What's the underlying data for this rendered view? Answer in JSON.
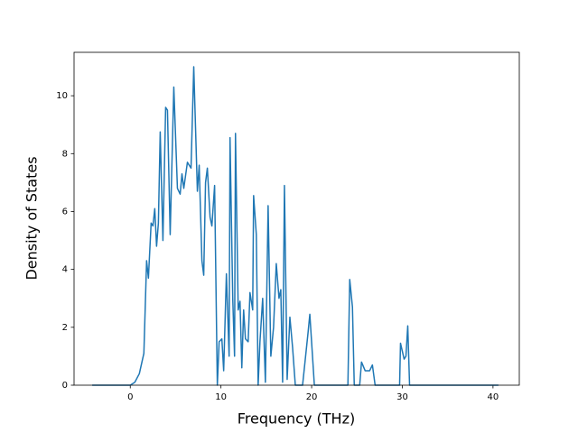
{
  "chart_data": {
    "type": "line",
    "x_label": "Frequency (THz)",
    "y_label": "Density of States",
    "xlim": [
      -6.2,
      42.9
    ],
    "ylim": [
      0,
      11.5
    ],
    "xticks": [
      0,
      10,
      20,
      30,
      40
    ],
    "yticks": [
      0,
      2,
      4,
      6,
      8,
      10
    ],
    "grid": false,
    "series": [
      {
        "color": "#1f77b4",
        "x": [
          -4.2,
          0,
          0.5,
          1,
          1.5,
          1.8,
          2,
          2.3,
          2.5,
          2.7,
          2.9,
          3.1,
          3.3,
          3.6,
          3.9,
          4.1,
          4.4,
          4.8,
          5.2,
          5.5,
          5.7,
          5.9,
          6.3,
          6.7,
          7.0,
          7.4,
          7.6,
          7.9,
          8.1,
          8.3,
          8.5,
          8.8,
          9.0,
          9.3,
          9.6,
          9.8,
          10.1,
          10.3,
          10.6,
          10.9,
          11.0,
          11.3,
          11.5,
          11.6,
          11.9,
          12.1,
          12.3,
          12.5,
          12.7,
          13.0,
          13.2,
          13.5,
          13.6,
          13.9,
          14.1,
          14.3,
          14.6,
          14.9,
          15.2,
          15.5,
          15.8,
          16.1,
          16.4,
          16.6,
          16.8,
          17.0,
          17.3,
          17.6,
          17.9,
          18.2,
          19.0,
          19.6,
          19.8,
          20.3,
          24.0,
          24.2,
          24.5,
          24.7,
          25.3,
          25.5,
          25.9,
          26.4,
          26.7,
          27.0,
          29.7,
          29.8,
          30.2,
          30.4,
          30.6,
          30.8,
          40.6
        ],
        "values": [
          0,
          0,
          0.1,
          0.4,
          1.1,
          4.3,
          3.7,
          5.6,
          5.5,
          6.1,
          4.8,
          5.6,
          8.75,
          5.0,
          9.6,
          9.5,
          5.2,
          10.3,
          6.8,
          6.6,
          7.3,
          6.8,
          7.7,
          7.5,
          11.0,
          6.7,
          7.6,
          4.3,
          3.8,
          7.0,
          7.5,
          5.8,
          5.5,
          6.9,
          0,
          1.5,
          1.6,
          0.5,
          3.85,
          1.0,
          8.55,
          3.0,
          1.0,
          8.7,
          2.6,
          2.9,
          0.6,
          2.6,
          1.6,
          1.5,
          3.2,
          2.6,
          6.55,
          5.2,
          0,
          1.5,
          3.0,
          0.1,
          6.2,
          1.0,
          2.0,
          4.2,
          3.0,
          3.3,
          0.1,
          6.9,
          0.2,
          2.35,
          1.3,
          0,
          0,
          1.8,
          2.45,
          0,
          0,
          3.65,
          2.7,
          0,
          0,
          0.8,
          0.5,
          0.5,
          0.7,
          0,
          0,
          1.45,
          0.9,
          1.0,
          2.05,
          0,
          0
        ]
      }
    ]
  }
}
